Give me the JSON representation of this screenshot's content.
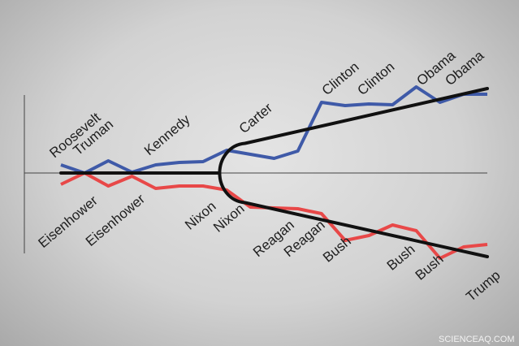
{
  "chart_data": {
    "type": "line",
    "title": "",
    "xlabel": "",
    "ylabel": "",
    "grid": false,
    "x": [
      0,
      1,
      2,
      3,
      4,
      5,
      6,
      7,
      8,
      9,
      10,
      11,
      12,
      13,
      14,
      15,
      16,
      17,
      18
    ],
    "ylim": [
      -12,
      12
    ],
    "series": [
      {
        "color": "#3f5aa8",
        "values": [
          1.0,
          0.0,
          1.5,
          0.1,
          1.0,
          1.3,
          1.4,
          2.8,
          2.3,
          1.8,
          2.7,
          8.7,
          8.3,
          8.5,
          8.4,
          10.6,
          8.7,
          9.7,
          9.7
        ]
      },
      {
        "color": "#e84848",
        "values": [
          -1.4,
          0.0,
          -1.6,
          -0.4,
          -1.9,
          -1.6,
          -1.6,
          -2.1,
          -4.2,
          -4.3,
          -4.4,
          -5.0,
          -8.3,
          -7.7,
          -6.4,
          -7.1,
          -10.5,
          -9.1,
          -8.8
        ]
      }
    ],
    "trend": {
      "color": "#111111",
      "baseline_end_x": 6.7,
      "fork_x": 7.5,
      "upper": [
        [
          7.5,
          3.5
        ],
        [
          18,
          10.4
        ]
      ],
      "lower": [
        [
          7.5,
          -3.5
        ],
        [
          18,
          -10.3
        ]
      ]
    },
    "labels_above": [
      {
        "text": "Roosevelt",
        "x": 0
      },
      {
        "text": "Truman",
        "x": 1
      },
      {
        "text": "Kennedy",
        "x": 4
      },
      {
        "text": "Carter",
        "x": 8
      },
      {
        "text": "Clinton",
        "x": 11.5
      },
      {
        "text": "Clinton",
        "x": 13
      },
      {
        "text": "Obama",
        "x": 15.5
      },
      {
        "text": "Obama",
        "x": 16.7
      }
    ],
    "labels_below": [
      {
        "text": "Eisenhower",
        "x": 1
      },
      {
        "text": "Eisenhower",
        "x": 3
      },
      {
        "text": "Nixon",
        "x": 6
      },
      {
        "text": "Nixon",
        "x": 7.2
      },
      {
        "text": "Reagan",
        "x": 9.3
      },
      {
        "text": "Reagan",
        "x": 10.6
      },
      {
        "text": "Bush",
        "x": 11.7
      },
      {
        "text": "Bush",
        "x": 14.4
      },
      {
        "text": "Bush",
        "x": 15.6
      },
      {
        "text": "Trump",
        "x": 18
      }
    ]
  },
  "watermark": "SCIENCEAQ.COM"
}
